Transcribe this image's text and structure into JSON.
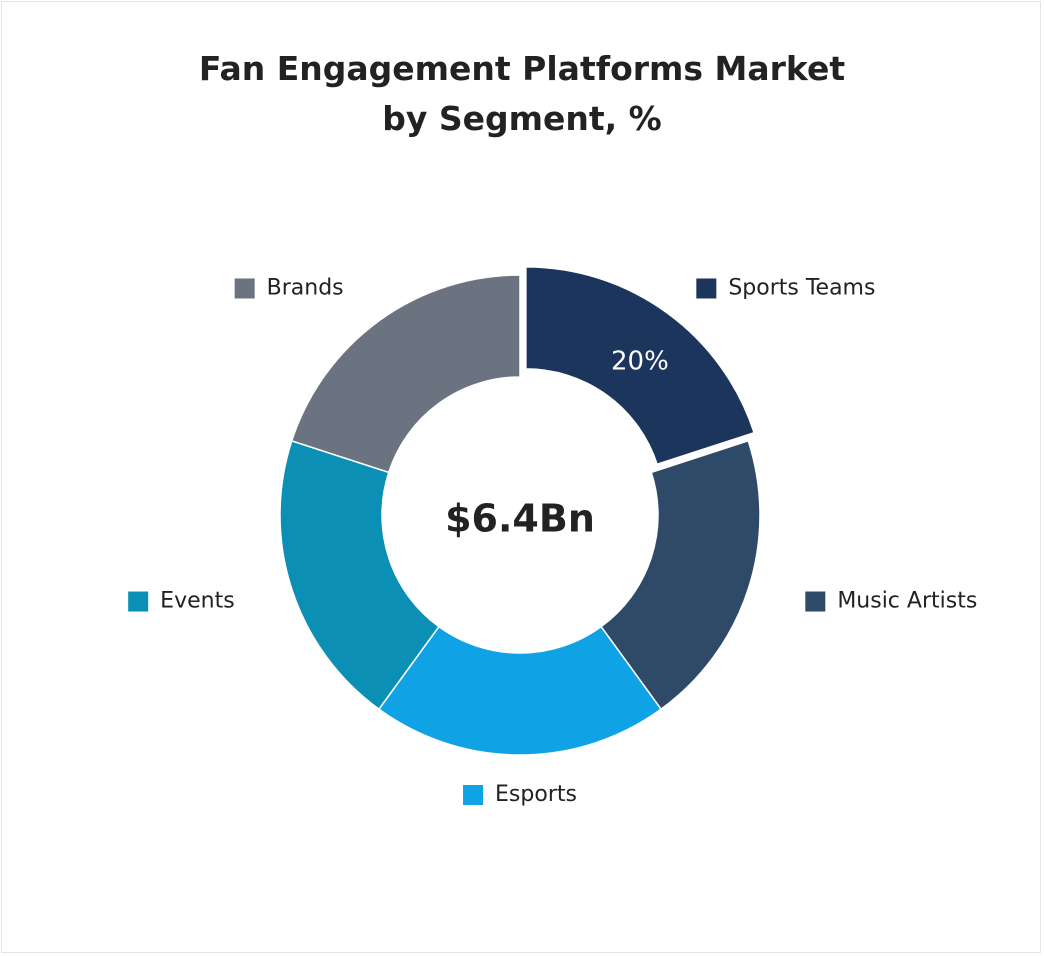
{
  "chart_data": {
    "type": "donut",
    "title": "Fan Engagement Platforms Market by Segment, %",
    "center_label": "$6.4Bn",
    "categories": [
      "Sports Teams",
      "Music Artists",
      "Esports",
      "Events",
      "Brands"
    ],
    "values": [
      20,
      20,
      20,
      20,
      20
    ],
    "value_labels": [
      "20%",
      null,
      null,
      null,
      null
    ],
    "colors": [
      "#1b355c",
      "#2e4a68",
      "#0fa3e6",
      "#0b8fb5",
      "#6b7280"
    ],
    "exploded": [
      true,
      false,
      false,
      false,
      false
    ]
  }
}
